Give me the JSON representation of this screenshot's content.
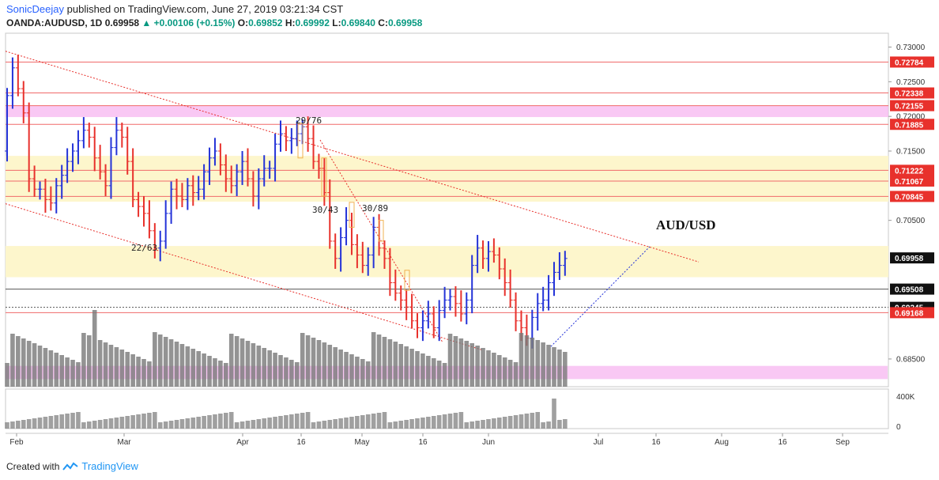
{
  "header": {
    "user": "SonicDeejay",
    "published": "published on TradingView.com, June 27, 2019 03:21:34 CST",
    "symbol_line": "OANDA:AUDUSD, 1D",
    "last": "0.69958",
    "change": "+0.00106 (+0.15%)",
    "open_label": "O:",
    "open": "0.69852",
    "high_label": "H:",
    "high": "0.69992",
    "low_label": "L:",
    "low": "0.69840",
    "close_label": "C:",
    "close": "0.69958"
  },
  "footer": {
    "created_with": "Created with",
    "brand": "TradingView"
  },
  "colors": {
    "up": "#2433d8",
    "down": "#e8312c",
    "level": "#f06a6a",
    "pink_zone": "#f7b5f0",
    "yellow_zone": "#fdf6cc",
    "volume": "#787878",
    "trend": "#e8312c",
    "projection": "#2433d8"
  },
  "chart_data": {
    "type": "candlestick",
    "pair_label": "AUD/USD",
    "price_axis": {
      "ticks": [
        "0.73000",
        "0.72500",
        "0.72000",
        "0.71500",
        "0.70500",
        "0.68500"
      ],
      "range": [
        0.681,
        0.732
      ]
    },
    "time_axis": {
      "ticks": [
        "Feb",
        "Mar",
        "Apr",
        "16",
        "May",
        "16",
        "Jun",
        "Jul",
        "16",
        "Aug",
        "16",
        "Sep"
      ]
    },
    "price_labels": [
      {
        "price": 0.72784,
        "text": "0.72784",
        "style": "red"
      },
      {
        "price": 0.72338,
        "text": "0.72338",
        "style": "red"
      },
      {
        "price": 0.72155,
        "text": "0.72155",
        "style": "red"
      },
      {
        "price": 0.71885,
        "text": "0.71885",
        "style": "red"
      },
      {
        "price": 0.71222,
        "text": "0.71222",
        "style": "red"
      },
      {
        "price": 0.71067,
        "text": "0.71067",
        "style": "red"
      },
      {
        "price": 0.70845,
        "text": "0.70845",
        "style": "red"
      },
      {
        "price": 0.69958,
        "text": "0.69958",
        "style": "black"
      },
      {
        "price": 0.69508,
        "text": "0.69508",
        "style": "black"
      },
      {
        "price": 0.69245,
        "text": "0.69245",
        "style": "black"
      },
      {
        "price": 0.69168,
        "text": "0.69168",
        "style": "red"
      }
    ],
    "annotations": [
      "29/76",
      "30/43",
      "30/89",
      "22/63"
    ],
    "volume_axis": {
      "ticks": [
        "400K",
        "0"
      ]
    },
    "closes": [
      0.723,
      0.727,
      0.724,
      0.7205,
      0.711,
      0.7095,
      0.7095,
      0.708,
      0.7075,
      0.71,
      0.7115,
      0.7135,
      0.715,
      0.7165,
      0.718,
      0.717,
      0.714,
      0.712,
      0.71,
      0.7155,
      0.718,
      0.717,
      0.7135,
      0.708,
      0.707,
      0.706,
      0.7035,
      0.701,
      0.702,
      0.706,
      0.7095,
      0.7085,
      0.708,
      0.71,
      0.709,
      0.7095,
      0.712,
      0.714,
      0.715,
      0.713,
      0.711,
      0.71,
      0.712,
      0.7135,
      0.711,
      0.7085,
      0.711,
      0.7125,
      0.7125,
      0.716,
      0.7175,
      0.7165,
      0.7168,
      0.7175,
      0.7185,
      0.7168,
      0.7135,
      0.7125,
      0.709,
      0.702,
      0.6995,
      0.7025,
      0.705,
      0.7015,
      0.7,
      0.6985,
      0.7,
      0.704,
      0.701,
      0.6995,
      0.696,
      0.6945,
      0.6935,
      0.6925,
      0.6905,
      0.6895,
      0.6905,
      0.6915,
      0.6895,
      0.692,
      0.6935,
      0.694,
      0.693,
      0.6915,
      0.6935,
      0.6985,
      0.701,
      0.6995,
      0.7005,
      0.7,
      0.698,
      0.696,
      0.6935,
      0.6905,
      0.6895,
      0.688,
      0.691,
      0.693,
      0.6935,
      0.696,
      0.6975,
      0.6985,
      0.6995
    ]
  }
}
